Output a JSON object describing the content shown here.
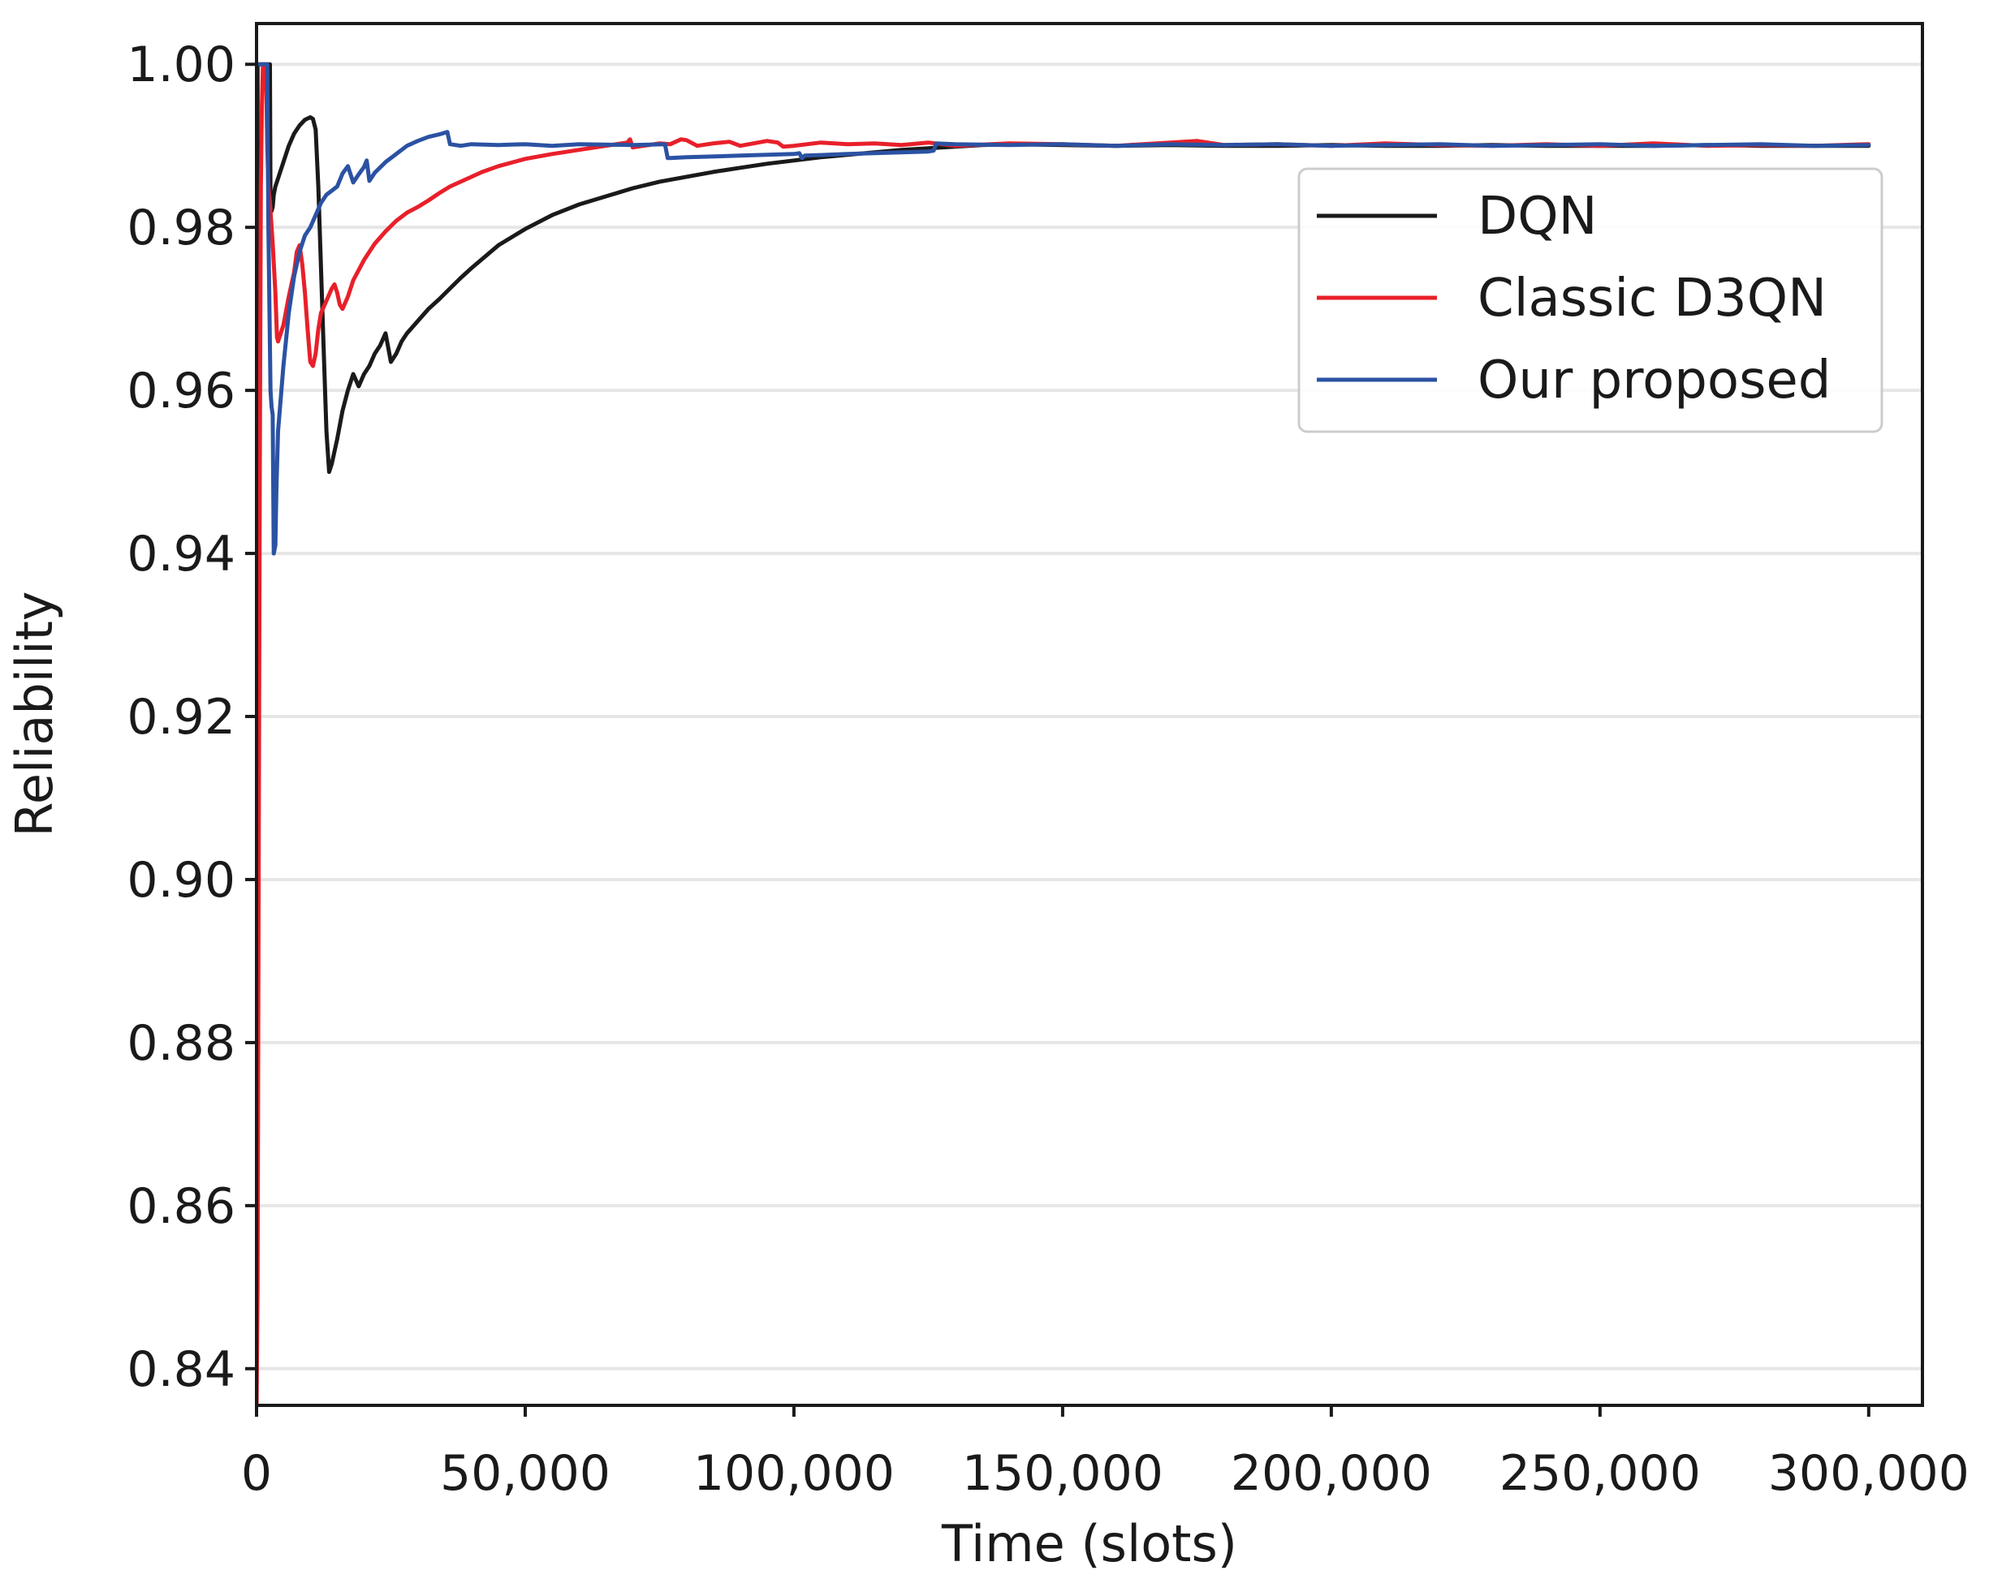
{
  "chart_data": {
    "type": "line",
    "title": "",
    "xlabel": "Time (slots)",
    "ylabel": "Reliability",
    "xlim": [
      0,
      310000
    ],
    "ylim": [
      0.8355,
      1.005
    ],
    "x_ticks": [
      0,
      50000,
      100000,
      150000,
      200000,
      250000,
      300000
    ],
    "x_tick_labels": [
      "0",
      "50,000",
      "100,000",
      "150,000",
      "200,000",
      "250,000",
      "300,000"
    ],
    "y_ticks": [
      0.84,
      0.86,
      0.88,
      0.9,
      0.92,
      0.94,
      0.96,
      0.98,
      1.0
    ],
    "y_tick_labels": [
      "0.84",
      "0.86",
      "0.88",
      "0.90",
      "0.92",
      "0.94",
      "0.96",
      "0.98",
      "1.00"
    ],
    "grid": "horizontal",
    "legend_position": "upper-right",
    "series": [
      {
        "name": "DQN",
        "color": "#1a1a1a",
        "x": [
          0,
          200,
          400,
          600,
          800,
          1000,
          1300,
          1600,
          2000,
          2500,
          2600,
          2800,
          3000,
          3200,
          3500,
          4000,
          5000,
          6000,
          7000,
          8000,
          9000,
          10000,
          10500,
          11000,
          11500,
          12000,
          12500,
          13000,
          13500,
          14000,
          15000,
          16000,
          17000,
          18000,
          19000,
          20000,
          21000,
          22000,
          23000,
          24000,
          25000,
          26000,
          27000,
          28000,
          30000,
          32000,
          34000,
          36000,
          38000,
          40000,
          45000,
          50000,
          55000,
          60000,
          65000,
          70000,
          75000,
          80000,
          85000,
          90000,
          95000,
          100000,
          105000,
          110000,
          115000,
          120000,
          125000,
          130000,
          135000,
          140000,
          150000,
          160000,
          170000,
          180000,
          190000,
          200000,
          210000,
          220000,
          230000,
          240000,
          250000,
          260000,
          270000,
          280000,
          290000,
          300000
        ],
        "y": [
          0.835,
          1.0,
          1.0,
          1.0,
          1.0,
          1.0,
          1.0,
          1.0,
          1.0,
          1.0,
          0.983,
          0.982,
          0.9825,
          0.984,
          0.985,
          0.986,
          0.988,
          0.99,
          0.9915,
          0.9925,
          0.9932,
          0.9935,
          0.9933,
          0.992,
          0.985,
          0.975,
          0.965,
          0.955,
          0.95,
          0.951,
          0.954,
          0.9575,
          0.96,
          0.962,
          0.9605,
          0.962,
          0.963,
          0.9645,
          0.9655,
          0.967,
          0.9635,
          0.9645,
          0.966,
          0.967,
          0.9685,
          0.97,
          0.9712,
          0.9725,
          0.9738,
          0.975,
          0.9778,
          0.9798,
          0.9815,
          0.9828,
          0.9838,
          0.9848,
          0.9856,
          0.9862,
          0.9868,
          0.9873,
          0.9878,
          0.9882,
          0.9886,
          0.9889,
          0.9892,
          0.9895,
          0.9897,
          0.9899,
          0.9901,
          0.9902,
          0.9901,
          0.99,
          0.9901,
          0.99,
          0.99,
          0.9901,
          0.99,
          0.99,
          0.9901,
          0.99,
          0.99,
          0.99,
          0.9901,
          0.99,
          0.99,
          0.99
        ]
      },
      {
        "name": "Classic D3QN",
        "color": "#e8202a",
        "x": [
          0,
          200,
          400,
          600,
          800,
          1000,
          1200,
          1500,
          1800,
          2000,
          2200,
          2500,
          3000,
          3500,
          3800,
          4000,
          5000,
          6000,
          7000,
          7500,
          8000,
          8500,
          9000,
          9500,
          10000,
          10500,
          11000,
          11500,
          12000,
          13000,
          14000,
          14500,
          15000,
          15500,
          16000,
          17000,
          18000,
          20000,
          22000,
          24000,
          26000,
          28000,
          30000,
          32000,
          34000,
          36000,
          38000,
          40000,
          42000,
          45000,
          50000,
          55000,
          60000,
          65000,
          69000,
          69500,
          70000,
          75000,
          77000,
          79000,
          80000,
          82000,
          85000,
          88000,
          90000,
          95000,
          97000,
          98000,
          100000,
          105000,
          110000,
          115000,
          120000,
          125000,
          130000,
          140000,
          150000,
          160000,
          170000,
          175000,
          180000,
          190000,
          200000,
          210000,
          220000,
          230000,
          240000,
          250000,
          260000,
          270000,
          280000,
          290000,
          300000
        ],
        "y": [
          0.835,
          0.85,
          0.9,
          0.95,
          0.985,
          0.995,
          1.0,
          1.0,
          0.998,
          0.99,
          0.985,
          0.983,
          0.978,
          0.972,
          0.9665,
          0.966,
          0.968,
          0.9715,
          0.9745,
          0.977,
          0.9778,
          0.9755,
          0.972,
          0.9675,
          0.9635,
          0.963,
          0.9645,
          0.9675,
          0.9695,
          0.971,
          0.9725,
          0.973,
          0.972,
          0.9705,
          0.97,
          0.9715,
          0.9735,
          0.976,
          0.978,
          0.9795,
          0.9808,
          0.9818,
          0.9825,
          0.9833,
          0.9842,
          0.985,
          0.9856,
          0.9862,
          0.9868,
          0.9875,
          0.9884,
          0.989,
          0.9895,
          0.99,
          0.9904,
          0.9908,
          0.9898,
          0.9903,
          0.9902,
          0.9908,
          0.9907,
          0.99,
          0.9903,
          0.9905,
          0.99,
          0.9906,
          0.9904,
          0.9899,
          0.99,
          0.9904,
          0.9902,
          0.9903,
          0.9901,
          0.9904,
          0.99,
          0.9903,
          0.9902,
          0.99,
          0.9904,
          0.9906,
          0.9901,
          0.9902,
          0.99,
          0.9903,
          0.9901,
          0.99,
          0.9902,
          0.99,
          0.9903,
          0.99,
          0.9901,
          0.99,
          0.9902
        ]
      },
      {
        "name": "Our proposed",
        "color": "#2b52a3",
        "x": [
          0,
          500,
          1000,
          1500,
          2000,
          2100,
          2200,
          2400,
          2600,
          2800,
          3000,
          3200,
          3500,
          3700,
          4000,
          5000,
          6000,
          7000,
          8000,
          9000,
          10000,
          11000,
          12000,
          13000,
          14000,
          15000,
          15500,
          16000,
          17000,
          18000,
          19000,
          20000,
          20500,
          21000,
          22000,
          24000,
          26000,
          28000,
          30000,
          32000,
          34000,
          35500,
          36000,
          38000,
          40000,
          45000,
          50000,
          55000,
          60000,
          70000,
          76000,
          76500,
          77000,
          80000,
          90000,
          100000,
          101000,
          101500,
          102000,
          110000,
          120000,
          125000,
          126000,
          126500,
          130000,
          140000,
          150000,
          160000,
          170000,
          180000,
          190000,
          200000,
          210000,
          220000,
          230000,
          240000,
          250000,
          260000,
          270000,
          280000,
          290000,
          300000
        ],
        "y": [
          1.0,
          1.0,
          1.0,
          1.0,
          1.0,
          0.99,
          0.98,
          0.97,
          0.96,
          0.958,
          0.957,
          0.94,
          0.941,
          0.948,
          0.955,
          0.963,
          0.9695,
          0.974,
          0.977,
          0.979,
          0.98,
          0.9815,
          0.983,
          0.984,
          0.9845,
          0.985,
          0.9858,
          0.9866,
          0.9875,
          0.9855,
          0.9865,
          0.9874,
          0.9882,
          0.9857,
          0.9867,
          0.988,
          0.989,
          0.99,
          0.9906,
          0.9911,
          0.9914,
          0.9917,
          0.9902,
          0.99,
          0.9902,
          0.9901,
          0.9902,
          0.99,
          0.9902,
          0.9901,
          0.9902,
          0.9885,
          0.9885,
          0.9886,
          0.9888,
          0.989,
          0.9891,
          0.9885,
          0.9888,
          0.989,
          0.9892,
          0.9893,
          0.9894,
          0.9903,
          0.9902,
          0.9901,
          0.9902,
          0.99,
          0.9902,
          0.9901,
          0.9902,
          0.99,
          0.9901,
          0.9902,
          0.99,
          0.9901,
          0.9902,
          0.99,
          0.9901,
          0.9902,
          0.99,
          0.9901
        ]
      }
    ]
  }
}
